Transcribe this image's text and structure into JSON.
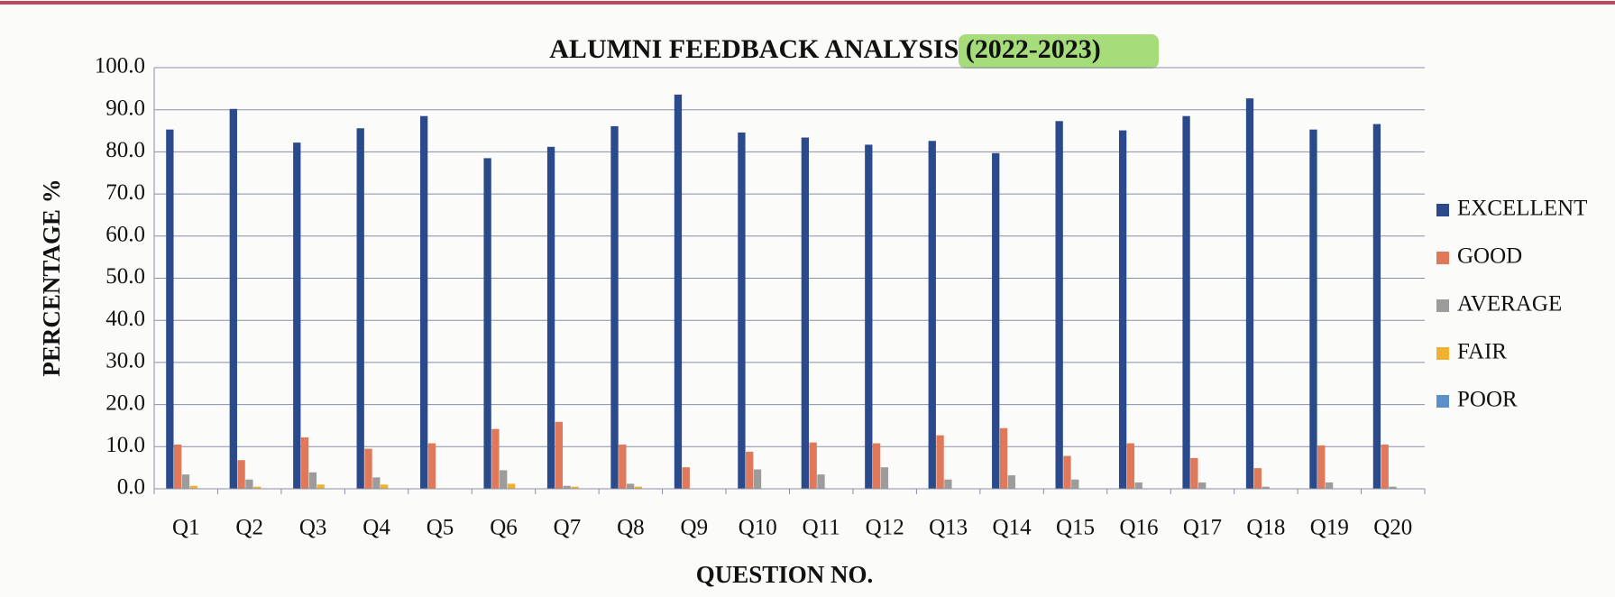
{
  "chart_data": {
    "type": "bar",
    "title": "ALUMNI FEEDBACK ANALYSIS (2022-2023)",
    "x_label": "QUESTION NO.",
    "y_label": "PERCENTAGE %",
    "categories": [
      "Q1",
      "Q2",
      "Q3",
      "Q4",
      "Q5",
      "Q6",
      "Q7",
      "Q8",
      "Q9",
      "Q10",
      "Q11",
      "Q12",
      "Q13",
      "Q14",
      "Q15",
      "Q16",
      "Q17",
      "Q18",
      "Q19",
      "Q20"
    ],
    "series": [
      {
        "name": "EXCELLENT",
        "color": "#2b4a8b",
        "values": [
          85.3,
          90.2,
          82.2,
          85.6,
          88.5,
          78.5,
          81.2,
          86.1,
          93.6,
          84.6,
          83.4,
          81.7,
          82.6,
          79.7,
          87.3,
          85.1,
          88.5,
          92.7,
          85.3,
          86.6
        ]
      },
      {
        "name": "GOOD",
        "color": "#e0785a",
        "values": [
          10.5,
          6.8,
          12.2,
          9.5,
          10.8,
          14.2,
          15.9,
          10.5,
          5.1,
          8.8,
          11.0,
          10.8,
          12.7,
          14.4,
          7.8,
          10.8,
          7.3,
          4.9,
          10.3,
          10.5
        ]
      },
      {
        "name": "AVERAGE",
        "color": "#9c9c9c",
        "values": [
          3.4,
          2.2,
          3.9,
          2.7,
          0,
          4.4,
          0.7,
          1.2,
          0,
          4.6,
          3.4,
          5.1,
          2.2,
          3.2,
          2.2,
          1.5,
          1.5,
          0.5,
          1.5,
          0.5
        ]
      },
      {
        "name": "FAIR",
        "color": "#f0b030",
        "values": [
          0.7,
          0.5,
          1.0,
          1.0,
          0,
          1.2,
          0.5,
          0.5,
          0,
          0,
          0,
          0,
          0,
          0,
          0,
          0,
          0,
          0,
          0,
          0
        ]
      },
      {
        "name": "POOR",
        "color": "#5b8fc8",
        "values": [
          0,
          0,
          0,
          0,
          0,
          0,
          0,
          0,
          0,
          0,
          0,
          0,
          0,
          0,
          0,
          0,
          0,
          0,
          0,
          0
        ]
      }
    ],
    "ylim": [
      0,
      100
    ],
    "yticks": [
      {
        "value": 0,
        "label": "0.0"
      },
      {
        "value": 10,
        "label": "10.0"
      },
      {
        "value": 20,
        "label": "20.0"
      },
      {
        "value": 30,
        "label": "30.0"
      },
      {
        "value": 40,
        "label": "40.0"
      },
      {
        "value": 50,
        "label": "50.0"
      },
      {
        "value": 60,
        "label": "60.0"
      },
      {
        "value": 70,
        "label": "70.0"
      },
      {
        "value": 80,
        "label": "80.0"
      },
      {
        "value": 90,
        "label": "90.0"
      },
      {
        "value": 100,
        "label": "100.0"
      }
    ],
    "grid": true,
    "legend": "right"
  }
}
